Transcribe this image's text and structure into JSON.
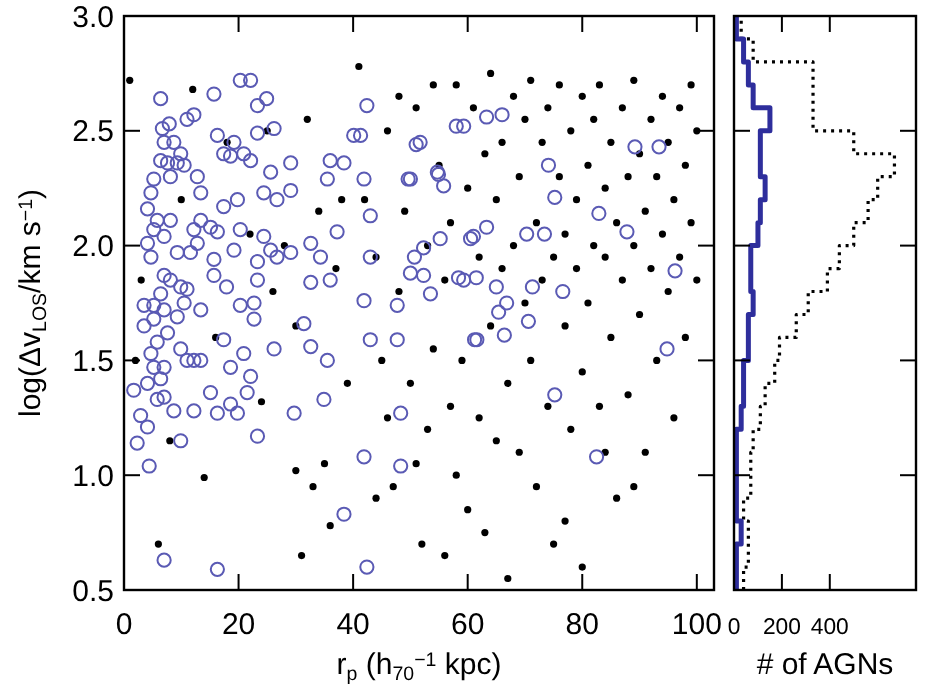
{
  "chart_data": [
    {
      "type": "scatter",
      "xlabel": "r$_{p}$ (h$_{70}$$^{−1}$ kpc)",
      "ylabel": "log(Δv$_{LOS}$/km s$^{−1}$)",
      "xlim": [
        0,
        103
      ],
      "xticks": [
        0,
        20,
        40,
        60,
        80,
        100
      ],
      "ylim": [
        0.5,
        3.0
      ],
      "yticks": [
        {
          "value": 0.5,
          "label": "0.5"
        },
        {
          "value": 1,
          "label": "1.0"
        },
        {
          "value": 1.5,
          "label": "1.5"
        },
        {
          "value": 2,
          "label": "2.0"
        },
        {
          "value": 2.5,
          "label": "2.5"
        },
        {
          "value": 3,
          "label": "3.0"
        }
      ],
      "marker": "circle",
      "series": [
        {
          "color": "#000000",
          "x": [
            1,
            3,
            2,
            8,
            12,
            14,
            18,
            25,
            28,
            30,
            32,
            34,
            35,
            36,
            38,
            39,
            30,
            33,
            26,
            22,
            31,
            37,
            24,
            6,
            10,
            16,
            41,
            42,
            44,
            44,
            45,
            46,
            46,
            47,
            48,
            48,
            49,
            50,
            51,
            51,
            52,
            53,
            53,
            54,
            54,
            55,
            56,
            56,
            57,
            57,
            58,
            58,
            59,
            60,
            60,
            61,
            62,
            62,
            63,
            63,
            64,
            64,
            65,
            65,
            66,
            66,
            67,
            67,
            68,
            68,
            69,
            69,
            70,
            70,
            71,
            71,
            72,
            72,
            73,
            73,
            74,
            74,
            75,
            75,
            76,
            76,
            77,
            77,
            78,
            78,
            79,
            79,
            80,
            80,
            80,
            81,
            81,
            82,
            82,
            83,
            83,
            84,
            84,
            85,
            85,
            86,
            86,
            87,
            87,
            88,
            88,
            89,
            89,
            90,
            90,
            91,
            91,
            92,
            92,
            93,
            93,
            94,
            94,
            95,
            95,
            96,
            96,
            97,
            97,
            98,
            98,
            99,
            99,
            100,
            100,
            89,
            77,
            84
          ],
          "values": [
            2.72,
            1.85,
            1.5,
            1.15,
            2.68,
            0.99,
            2.45,
            2.5,
            2.0,
            1.65,
            2.55,
            2.15,
            1.05,
            0.78,
            2.2,
            1.4,
            1.02,
            0.95,
            1.8,
            2.05,
            0.65,
            1.9,
            1.32,
            0.7,
            2.2,
            1.6,
            2.78,
            2.2,
            1.95,
            0.9,
            1.5,
            2.5,
            1.25,
            0.95,
            2.65,
            1.8,
            2.15,
            1.4,
            2.6,
            1.05,
            0.7,
            2.0,
            1.2,
            2.7,
            1.55,
            2.35,
            1.85,
            0.65,
            2.1,
            1.3,
            2.7,
            1.0,
            1.5,
            2.25,
            0.85,
            2.6,
            1.95,
            1.25,
            2.4,
            0.75,
            2.75,
            1.65,
            2.2,
            1.15,
            2.45,
            1.9,
            0.55,
            1.4,
            2.65,
            2.0,
            1.1,
            2.3,
            1.75,
            2.55,
            2.72,
            1.5,
            2.1,
            0.95,
            2.45,
            1.85,
            2.6,
            1.3,
            1.95,
            0.7,
            2.3,
            2.7,
            1.65,
            2.05,
            2.5,
            1.2,
            1.9,
            2.2,
            2.65,
            1.45,
            0.6,
            2.35,
            1.75,
            2.0,
            2.55,
            1.3,
            2.7,
            1.95,
            2.25,
            1.6,
            2.45,
            2.1,
            0.9,
            2.6,
            1.85,
            1.35,
            2.3,
            2.0,
            2.72,
            1.7,
            2.4,
            2.15,
            1.1,
            2.55,
            1.9,
            2.3,
            1.5,
            2.65,
            2.05,
            1.8,
            2.45,
            2.2,
            1.25,
            2.6,
            1.95,
            2.35,
            1.6,
            2.7,
            2.1,
            1.85,
            2.5,
            0.95,
            0.8,
            1.1
          ]
        },
        {
          "color": "#5a5ab4",
          "x": [
            6.4,
            15.7,
            20.3,
            22.1,
            24.9,
            23.3,
            6.7,
            7.9,
            11,
            12.2,
            7,
            8.7,
            9.9,
            7.6,
            9.3,
            10.5,
            8.1,
            6.4,
            5.2,
            4.7,
            12.8,
            13.4,
            16.3,
            17.4,
            19.2,
            18.6,
            20.9,
            22.1,
            23.3,
            26.2,
            25.6,
            26.7,
            24.4,
            19.8,
            17.4,
            5.8,
            4.1,
            5.2,
            8.1,
            4.1,
            4.7,
            7,
            12.2,
            13.4,
            15.1,
            16.3,
            12.8,
            11.6,
            9.3,
            20.3,
            24.4,
            25.6,
            26.7,
            29.1,
            23.3,
            15.7,
            19.2,
            7,
            8.1,
            6.4,
            9.9,
            11,
            15.7,
            17.9,
            23.3,
            3.5,
            5.2,
            7,
            10.5,
            13.4,
            3.5,
            5.2,
            9.3,
            7.6,
            20.3,
            22.7,
            22.7,
            31.4,
            5.8,
            4.7,
            9.9,
            11,
            12.2,
            13.4,
            20.9,
            17.4,
            26.2,
            5.2,
            7,
            6.4,
            4.1,
            1.7,
            18.6,
            22.1,
            15.1,
            5.8,
            7,
            2.9,
            4.1,
            8.7,
            12.2,
            16.3,
            18.6,
            19.8,
            21.5,
            2.3,
            9.9,
            23.3,
            4.4,
            7,
            16.3,
            29.7,
            34.9,
            35.5,
            32.6,
            36,
            32.6,
            37.2,
            32.6,
            34.3,
            36,
            38.4,
            35.5,
            29.1,
            29.1,
            40.1,
            41.3,
            42.4,
            41.9,
            43,
            43,
            41.9,
            43,
            41.9,
            38.4,
            42.4,
            47.7,
            47.7,
            48.3,
            48.3,
            50,
            50,
            52.3,
            51.7,
            52.3,
            54.7,
            55.8,
            53.5,
            59.3,
            61.6,
            59.3,
            61,
            58,
            63.3,
            66,
            51,
            49.6,
            54.9,
            74.1,
            75.2,
            82.9,
            87.8,
            89.2,
            93.4,
            96.2,
            94.8,
            82.5,
            75.2,
            66.4,
            61.2,
            70.6,
            66.8,
            65.4,
            65,
            71.3,
            76.6,
            58.4,
            61.5,
            60.5,
            63.3,
            70.3,
            73.4,
            55.2,
            50.7
          ],
          "values": [
            2.64,
            2.66,
            2.72,
            2.72,
            2.64,
            2.61,
            2.51,
            2.53,
            2.55,
            2.57,
            2.45,
            2.45,
            2.4,
            2.36,
            2.36,
            2.35,
            2.3,
            2.37,
            2.29,
            2.23,
            2.3,
            2.23,
            2.48,
            2.4,
            2.45,
            2.39,
            2.4,
            2.37,
            2.49,
            2.51,
            2.32,
            2.2,
            2.23,
            2.2,
            2.17,
            2.11,
            2.16,
            2.07,
            2.11,
            2.01,
            1.95,
            2.04,
            2.07,
            2.11,
            2.08,
            2.06,
            2.01,
            1.97,
            1.97,
            2.07,
            2.04,
            1.98,
            1.95,
            1.97,
            1.93,
            1.94,
            1.98,
            1.87,
            1.85,
            1.79,
            1.82,
            1.81,
            1.87,
            1.82,
            1.85,
            1.74,
            1.74,
            1.72,
            1.75,
            1.72,
            1.65,
            1.68,
            1.69,
            1.62,
            1.74,
            1.75,
            1.68,
            1.66,
            1.58,
            1.53,
            1.55,
            1.5,
            1.5,
            1.5,
            1.53,
            1.59,
            1.55,
            1.47,
            1.47,
            1.42,
            1.4,
            1.37,
            1.47,
            1.43,
            1.36,
            1.33,
            1.34,
            1.26,
            1.21,
            1.28,
            1.28,
            1.27,
            1.31,
            1.27,
            1.36,
            1.14,
            1.15,
            1.17,
            1.04,
            0.63,
            0.59,
            1.27,
            1.33,
            1.5,
            1.56,
            1.85,
            1.84,
            2.06,
            2.01,
            1.95,
            2.37,
            2.36,
            2.29,
            2.36,
            2.24,
            2.48,
            2.48,
            2.61,
            2.29,
            2.13,
            1.95,
            1.76,
            1.59,
            1.08,
            0.83,
            0.6,
            1.59,
            1.74,
            1.27,
            1.04,
            2.29,
            1.88,
            1.99,
            2.45,
            1.87,
            2.32,
            2.26,
            1.79,
            2.52,
            1.59,
            1.85,
            2.04,
            2.52,
            2.56,
            2.57,
            2.44,
            2.29,
            2.31,
            2.35,
            2.21,
            2.14,
            2.06,
            2.43,
            2.43,
            1.89,
            1.55,
            1.08,
            1.35,
            1.61,
            1.59,
            1.67,
            1.75,
            1.71,
            1.82,
            1.82,
            1.8,
            1.86,
            1.86,
            2.03,
            2.08,
            2.05,
            2.05,
            2.03,
            1.95
          ]
        }
      ]
    },
    {
      "type": "histogram",
      "orientation": "horizontal",
      "xlabel": "# of AGNs",
      "xlim": [
        0,
        760
      ],
      "xticks": [
        0,
        200,
        400
      ],
      "ylim": [
        0.5,
        3.0
      ],
      "yticks": [
        0.5,
        1,
        1.5,
        2,
        2.5,
        3
      ],
      "tick_labels": "x",
      "bins": [
        0.5,
        0.6,
        0.7,
        0.8,
        0.9,
        1.0,
        1.1,
        1.2,
        1.3,
        1.4,
        1.5,
        1.6,
        1.7,
        1.8,
        1.9,
        2.0,
        2.1,
        2.2,
        2.3,
        2.4,
        2.5,
        2.6,
        2.7,
        2.8,
        2.9,
        3.0
      ],
      "series": [
        {
          "color": "#000000",
          "line_style": "dotted",
          "values": [
            40,
            60,
            60,
            40,
            70,
            70,
            80,
            110,
            130,
            170,
            190,
            260,
            310,
            390,
            440,
            500,
            560,
            600,
            670,
            500,
            330,
            330,
            330,
            80,
            30
          ]
        },
        {
          "color": "#2e2e9c",
          "line_style": "solid",
          "values": [
            10,
            10,
            30,
            10,
            10,
            10,
            10,
            30,
            40,
            40,
            60,
            60,
            80,
            70,
            70,
            100,
            110,
            130,
            110,
            110,
            150,
            80,
            60,
            40,
            10
          ]
        }
      ]
    }
  ]
}
